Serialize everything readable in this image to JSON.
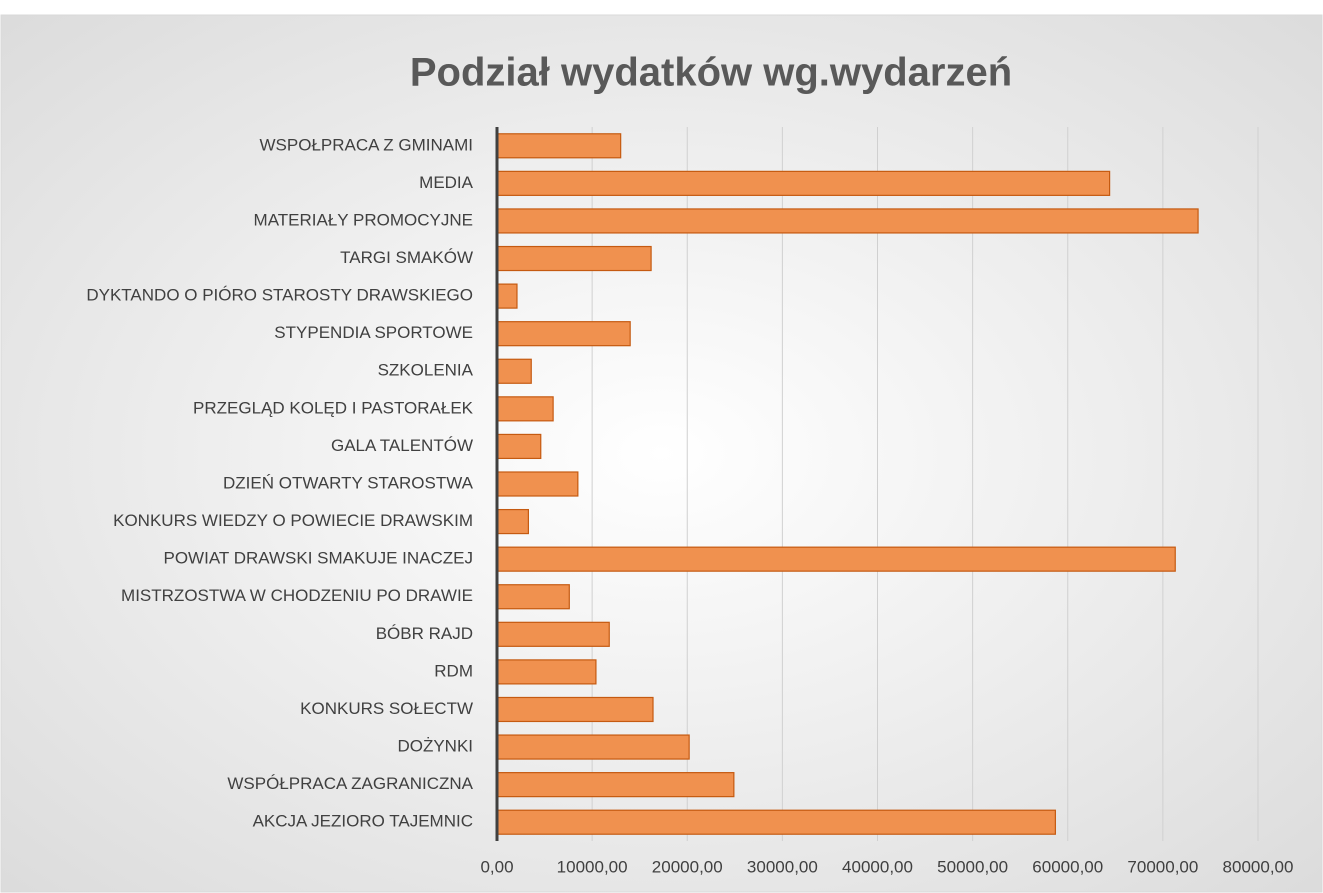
{
  "chart_data": {
    "type": "bar",
    "orientation": "horizontal",
    "title": "Podział wydatków wg.wydarzeń",
    "categories": [
      "WSPOŁPRACA Z GMINAMI",
      "MEDIA",
      "MATERIAŁY PROMOCYJNE",
      "TARGI SMAKÓW",
      "DYKTANDO O PIÓRO STAROSTY DRAWSKIEGO",
      "STYPENDIA SPORTOWE",
      "SZKOLENIA",
      "PRZEGLĄD KOLĘD I PASTORAŁEK",
      "GALA TALENTÓW",
      "DZIEŃ OTWARTY STAROSTWA",
      "KONKURS WIEDZY O POWIECIE DRAWSKIM",
      "POWIAT DRAWSKI SMAKUJE INACZEJ",
      "MISTRZOSTWA W CHODZENIU PO DRAWIE",
      "BÓBR RAJD",
      "RDM",
      "KONKURS SOŁECTW",
      "DOŻYNKI",
      "WSPÓŁPRACA ZAGRANICZNA",
      "AKCJA JEZIORO TAJEMNIC"
    ],
    "values": [
      13000,
      64400,
      73700,
      16200,
      2100,
      14000,
      3600,
      5900,
      4600,
      8500,
      3300,
      71300,
      7600,
      11800,
      10400,
      16400,
      20200,
      24900,
      58700
    ],
    "color": "#f0914f",
    "xlim": [
      0,
      80000
    ],
    "xticks": [
      {
        "value": 0,
        "label": "0,00"
      },
      {
        "value": 10000,
        "label": "10000,00"
      },
      {
        "value": 20000,
        "label": "20000,00"
      },
      {
        "value": 30000,
        "label": "30000,00"
      },
      {
        "value": 40000,
        "label": "40000,00"
      },
      {
        "value": 50000,
        "label": "50000,00"
      },
      {
        "value": 60000,
        "label": "60000,00"
      },
      {
        "value": 70000,
        "label": "70000,00"
      },
      {
        "value": 80000,
        "label": "80000,00"
      }
    ],
    "grid": true
  }
}
